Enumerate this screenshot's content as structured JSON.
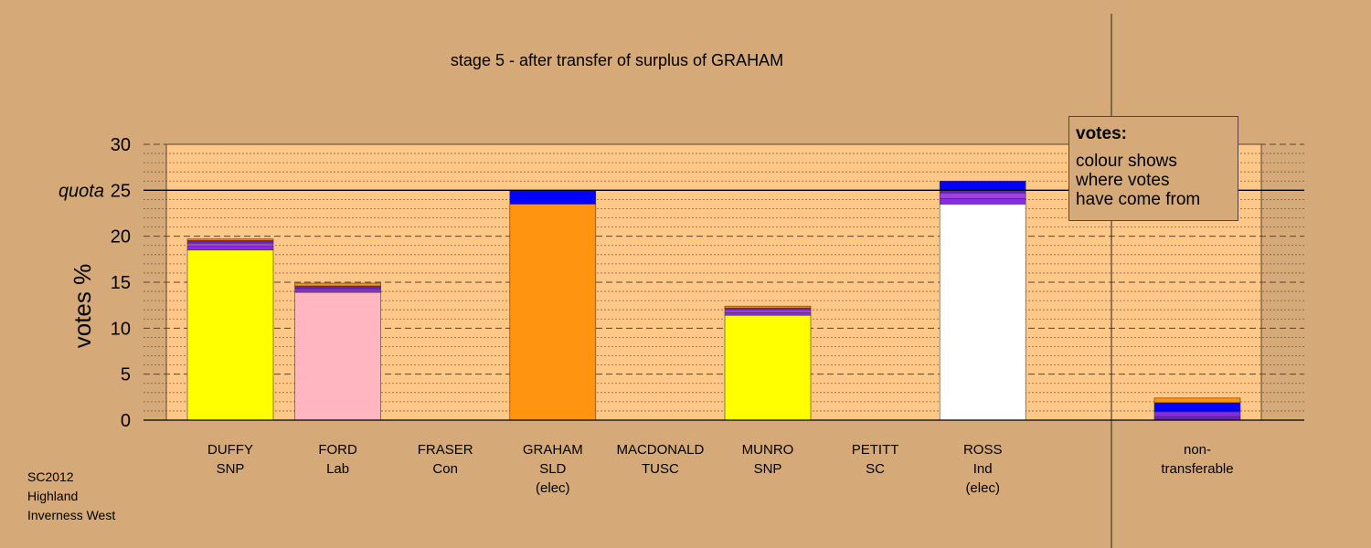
{
  "chart_data": {
    "type": "bar",
    "stacked": true,
    "title": "stage 5 - after transfer of surplus of GRAHAM",
    "ylabel": "votes %",
    "ylim": [
      0,
      30
    ],
    "yticks": [
      0,
      5,
      10,
      15,
      20,
      25,
      30
    ],
    "quota": 25,
    "quota_label": "quota",
    "categories": [
      [
        "DUFFY",
        "SNP"
      ],
      [
        "FORD",
        "Lab"
      ],
      [
        "FRASER",
        "Con"
      ],
      [
        "GRAHAM",
        "SLD",
        "(elec)"
      ],
      [
        "MACDONALD",
        "TUSC"
      ],
      [
        "MUNRO",
        "SNP"
      ],
      [
        "PETITT",
        "SC"
      ],
      [
        "ROSS",
        "Ind",
        "(elec)"
      ],
      [
        "non-",
        "transferable"
      ]
    ],
    "stacks": [
      [
        {
          "value": 18.5,
          "color": "#ffff00"
        },
        {
          "value": 0.4,
          "color": "#8a2be2"
        },
        {
          "value": 0.35,
          "color": "#a040e0"
        },
        {
          "value": 0.3,
          "color": "#6a1fc2"
        },
        {
          "value": 0.15,
          "color": "#ff9410"
        }
      ],
      [
        {
          "value": 13.9,
          "color": "#ffb6c1"
        },
        {
          "value": 0.4,
          "color": "#8a2be2"
        },
        {
          "value": 0.3,
          "color": "#6a1fc2"
        },
        {
          "value": 0.3,
          "color": "#ff9410"
        }
      ],
      [],
      [
        {
          "value": 23.5,
          "color": "#ff9410"
        },
        {
          "value": 1.5,
          "color": "#0000ff"
        }
      ],
      [],
      [
        {
          "value": 11.4,
          "color": "#ffff00"
        },
        {
          "value": 0.3,
          "color": "#8a2be2"
        },
        {
          "value": 0.3,
          "color": "#a040e0"
        },
        {
          "value": 0.2,
          "color": "#6a1fc2"
        },
        {
          "value": 0.2,
          "color": "#ff9410"
        }
      ],
      [],
      [
        {
          "value": 23.5,
          "color": "#ffffff"
        },
        {
          "value": 0.6,
          "color": "#8a2be2"
        },
        {
          "value": 0.6,
          "color": "#a040e0"
        },
        {
          "value": 0.3,
          "color": "#6a1fc2"
        },
        {
          "value": 1.0,
          "color": "#0000ff"
        }
      ],
      [
        {
          "value": 0.4,
          "color": "#6a1fc2"
        },
        {
          "value": 0.5,
          "color": "#8a2be2"
        },
        {
          "value": 1.0,
          "color": "#0000ff"
        },
        {
          "value": 0.5,
          "color": "#ff9410"
        }
      ]
    ],
    "grid": true,
    "colors": {
      "background": "#d5aa78",
      "plot_area": "#ffc888",
      "grid": "#5a4630"
    }
  },
  "legend": {
    "title": "votes:",
    "lines": [
      "colour shows",
      "where votes",
      "have come from"
    ]
  },
  "footer": [
    "SC2012",
    "Highland",
    "Inverness West"
  ]
}
